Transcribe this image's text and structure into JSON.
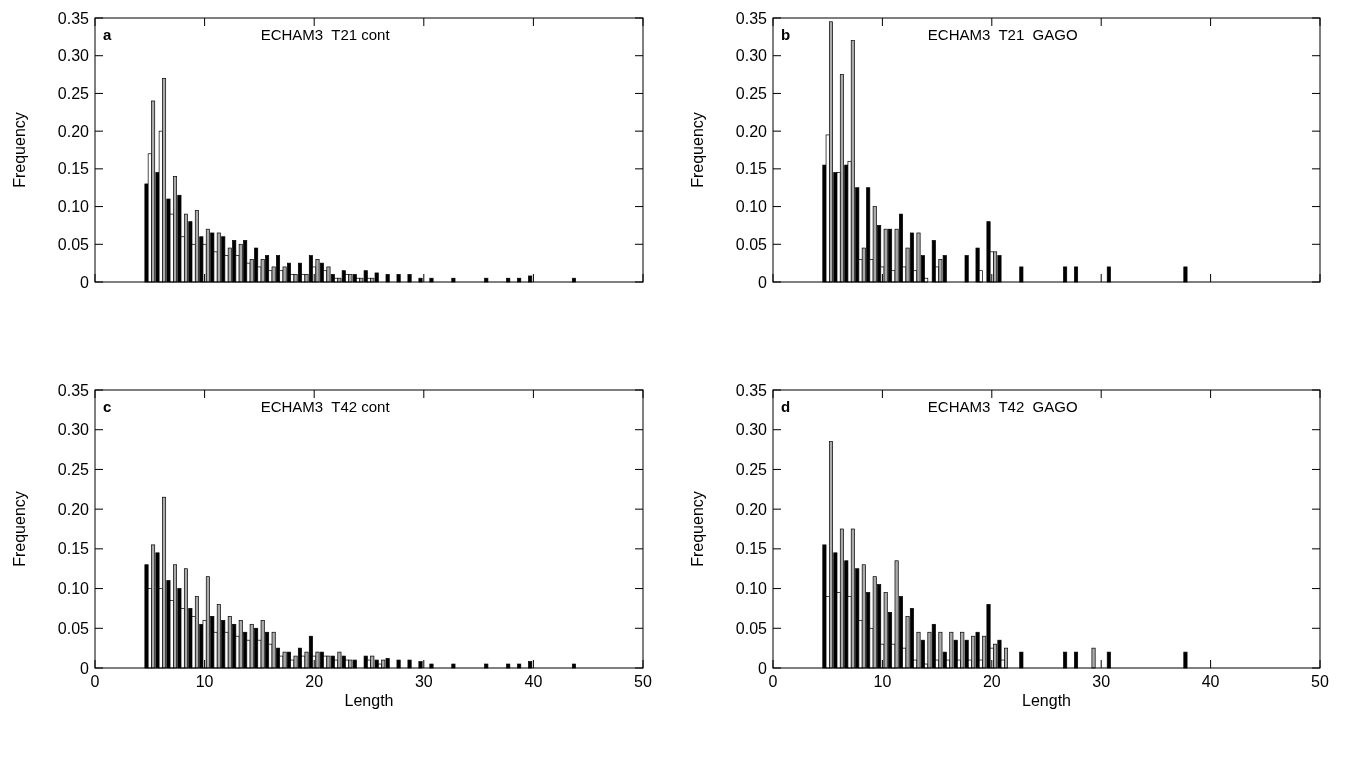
{
  "chart_data": [
    {
      "type": "bar",
      "title": "ECHAM3  T21 cont",
      "annotations": [
        "a"
      ],
      "ylabel": "Frequency",
      "xlim": [
        0,
        50
      ],
      "xticks": [
        0,
        10,
        20,
        30,
        40,
        50
      ],
      "ylim": [
        0,
        0.35
      ],
      "yticks": [
        0,
        0.05,
        {
          "value": 0.1,
          "label": "0.10"
        },
        0.15,
        {
          "value": 0.2,
          "label": "0.20"
        },
        0.25,
        {
          "value": 0.3,
          "label": "0.30"
        },
        0.35
      ],
      "tick_labels": "y",
      "series": [
        {
          "color": "#000000",
          "x": [
            5,
            6,
            7,
            8,
            9,
            10,
            11,
            12,
            13,
            14,
            15,
            16,
            17,
            18,
            19,
            20,
            21,
            22,
            23,
            24,
            25,
            26,
            27,
            28,
            29,
            30,
            31,
            33,
            36,
            38,
            39,
            40,
            44
          ],
          "values": [
            0.13,
            0.145,
            0.11,
            0.115,
            0.08,
            0.06,
            0.065,
            0.06,
            0.055,
            0.055,
            0.045,
            0.035,
            0.035,
            0.025,
            0.025,
            0.035,
            0.025,
            0.01,
            0.015,
            0.01,
            0.015,
            0.012,
            0.01,
            0.01,
            0.01,
            0.005,
            0.005,
            0.005,
            0.005,
            0.005,
            0.005,
            0.008,
            0.005
          ]
        },
        {
          "color": "#ffffff",
          "x": [
            5,
            6,
            7,
            8,
            9,
            10,
            11,
            12,
            13,
            14,
            15,
            16,
            17,
            18,
            19,
            20,
            21,
            22,
            23,
            24,
            25
          ],
          "values": [
            0.17,
            0.2,
            0.09,
            0.06,
            0.05,
            0.05,
            0.04,
            0.035,
            0.035,
            0.025,
            0.02,
            0.015,
            0.015,
            0.01,
            0.01,
            0.02,
            0.015,
            0.005,
            0.01,
            0.005,
            0.005
          ]
        },
        {
          "color": "#aaaaaa",
          "x": [
            5,
            6,
            7,
            8,
            9,
            10,
            11,
            12,
            13,
            14,
            15,
            16,
            17,
            18,
            19,
            20,
            21,
            22,
            23,
            24,
            25
          ],
          "values": [
            0.24,
            0.27,
            0.14,
            0.09,
            0.095,
            0.07,
            0.065,
            0.045,
            0.05,
            0.03,
            0.03,
            0.02,
            0.02,
            0.01,
            0.01,
            0.03,
            0.02,
            0.005,
            0.01,
            0.005,
            0.005
          ]
        }
      ]
    },
    {
      "type": "bar",
      "title": "ECHAM3  T21  GAGO",
      "annotations": [
        "b"
      ],
      "ylabel": "Frequency",
      "xlim": [
        0,
        50
      ],
      "xticks": [
        0,
        10,
        20,
        30,
        40,
        50
      ],
      "ylim": [
        0,
        0.35
      ],
      "yticks": [
        0,
        0.05,
        {
          "value": 0.1,
          "label": "0.10"
        },
        0.15,
        {
          "value": 0.2,
          "label": "0.20"
        },
        0.25,
        {
          "value": 0.3,
          "label": "0.30"
        },
        0.35
      ],
      "tick_labels": "y",
      "series": [
        {
          "color": "#000000",
          "x": [
            5,
            6,
            7,
            8,
            9,
            10,
            11,
            12,
            13,
            14,
            15,
            16,
            18,
            19,
            20,
            21,
            23,
            27,
            28,
            31,
            38
          ],
          "values": [
            0.155,
            0.145,
            0.155,
            0.125,
            0.125,
            0.075,
            0.07,
            0.09,
            0.065,
            0.035,
            0.055,
            0.035,
            0.035,
            0.045,
            0.08,
            0.035,
            0.02,
            0.02,
            0.02,
            0.02,
            0.02
          ]
        },
        {
          "color": "#ffffff",
          "x": [
            5,
            6,
            7,
            8,
            9,
            10,
            11,
            12,
            13,
            14,
            15,
            19,
            20
          ],
          "values": [
            0.195,
            0.145,
            0.16,
            0.03,
            0.03,
            0.02,
            0.015,
            0.02,
            0.015,
            0.005,
            0.02,
            0.015,
            0.04
          ]
        },
        {
          "color": "#aaaaaa",
          "x": [
            5,
            6,
            7,
            8,
            9,
            10,
            11,
            12,
            13,
            15,
            20
          ],
          "values": [
            0.345,
            0.275,
            0.32,
            0.045,
            0.1,
            0.07,
            0.07,
            0.045,
            0.065,
            0.03,
            0.04
          ]
        }
      ]
    },
    {
      "type": "bar",
      "title": "ECHAM3  T42 cont",
      "annotations": [
        "c"
      ],
      "xlabel": "Length",
      "ylabel": "Frequency",
      "xlim": [
        0,
        50
      ],
      "xticks": [
        0,
        10,
        20,
        30,
        40,
        50
      ],
      "ylim": [
        0,
        0.35
      ],
      "yticks": [
        0,
        0.05,
        {
          "value": 0.1,
          "label": "0.10"
        },
        0.15,
        {
          "value": 0.2,
          "label": "0.20"
        },
        0.25,
        {
          "value": 0.3,
          "label": "0.30"
        },
        0.35
      ],
      "series": [
        {
          "color": "#000000",
          "x": [
            5,
            6,
            7,
            8,
            9,
            10,
            11,
            12,
            13,
            14,
            15,
            16,
            17,
            18,
            19,
            20,
            21,
            22,
            23,
            24,
            25,
            26,
            27,
            28,
            29,
            30,
            31,
            33,
            36,
            38,
            39,
            40,
            44
          ],
          "values": [
            0.13,
            0.145,
            0.11,
            0.1,
            0.075,
            0.055,
            0.065,
            0.06,
            0.055,
            0.045,
            0.05,
            0.045,
            0.025,
            0.02,
            0.025,
            0.04,
            0.02,
            0.015,
            0.015,
            0.01,
            0.015,
            0.01,
            0.012,
            0.01,
            0.01,
            0.008,
            0.005,
            0.005,
            0.005,
            0.005,
            0.005,
            0.008,
            0.005
          ]
        },
        {
          "color": "#ffffff",
          "x": [
            5,
            6,
            7,
            8,
            9,
            10,
            11,
            12,
            13,
            14,
            15,
            16,
            17,
            18,
            19,
            20,
            21,
            22,
            23,
            25,
            26
          ],
          "values": [
            0.1,
            0.1,
            0.085,
            0.075,
            0.065,
            0.06,
            0.045,
            0.045,
            0.04,
            0.035,
            0.035,
            0.03,
            0.015,
            0.01,
            0.015,
            0.015,
            0.015,
            0.01,
            0.01,
            0.01,
            0.005
          ]
        },
        {
          "color": "#aaaaaa",
          "x": [
            5,
            6,
            7,
            8,
            9,
            10,
            11,
            12,
            13,
            14,
            15,
            16,
            17,
            18,
            19,
            20,
            21,
            22,
            23,
            25,
            26
          ],
          "values": [
            0.155,
            0.215,
            0.13,
            0.125,
            0.09,
            0.115,
            0.08,
            0.065,
            0.06,
            0.055,
            0.06,
            0.045,
            0.02,
            0.015,
            0.02,
            0.02,
            0.015,
            0.02,
            0.01,
            0.015,
            0.01
          ]
        }
      ]
    },
    {
      "type": "bar",
      "title": "ECHAM3  T42  GAGO",
      "annotations": [
        "d"
      ],
      "xlabel": "Length",
      "ylabel": "Frequency",
      "xlim": [
        0,
        50
      ],
      "xticks": [
        0,
        10,
        20,
        30,
        40,
        50
      ],
      "ylim": [
        0,
        0.35
      ],
      "yticks": [
        0,
        0.05,
        {
          "value": 0.1,
          "label": "0.10"
        },
        0.15,
        {
          "value": 0.2,
          "label": "0.20"
        },
        0.25,
        {
          "value": 0.3,
          "label": "0.30"
        },
        0.35
      ],
      "series": [
        {
          "color": "#000000",
          "x": [
            5,
            6,
            7,
            8,
            9,
            10,
            11,
            12,
            13,
            14,
            15,
            16,
            17,
            18,
            19,
            20,
            21,
            23,
            27,
            28,
            31,
            38
          ],
          "values": [
            0.155,
            0.145,
            0.135,
            0.125,
            0.095,
            0.105,
            0.07,
            0.09,
            0.075,
            0.035,
            0.055,
            0.02,
            0.035,
            0.035,
            0.045,
            0.08,
            0.035,
            0.02,
            0.02,
            0.02,
            0.02,
            0.02
          ]
        },
        {
          "color": "#ffffff",
          "x": [
            5,
            6,
            7,
            8,
            9,
            10,
            11,
            12,
            13,
            14,
            15,
            16,
            17,
            18,
            19,
            20,
            21
          ],
          "values": [
            0.09,
            0.095,
            0.09,
            0.06,
            0.05,
            0.03,
            0.03,
            0.025,
            0.01,
            0.005,
            0.01,
            0.01,
            0.01,
            0.01,
            0.01,
            0.025,
            0.01
          ]
        },
        {
          "color": "#aaaaaa",
          "x": [
            5,
            6,
            7,
            8,
            9,
            10,
            11,
            12,
            13,
            14,
            15,
            16,
            17,
            18,
            19,
            20,
            21,
            29
          ],
          "values": [
            0.285,
            0.175,
            0.175,
            0.13,
            0.115,
            0.095,
            0.135,
            0.065,
            0.045,
            0.045,
            0.045,
            0.045,
            0.045,
            0.04,
            0.04,
            0.03,
            0.025,
            0.025
          ]
        }
      ]
    }
  ]
}
